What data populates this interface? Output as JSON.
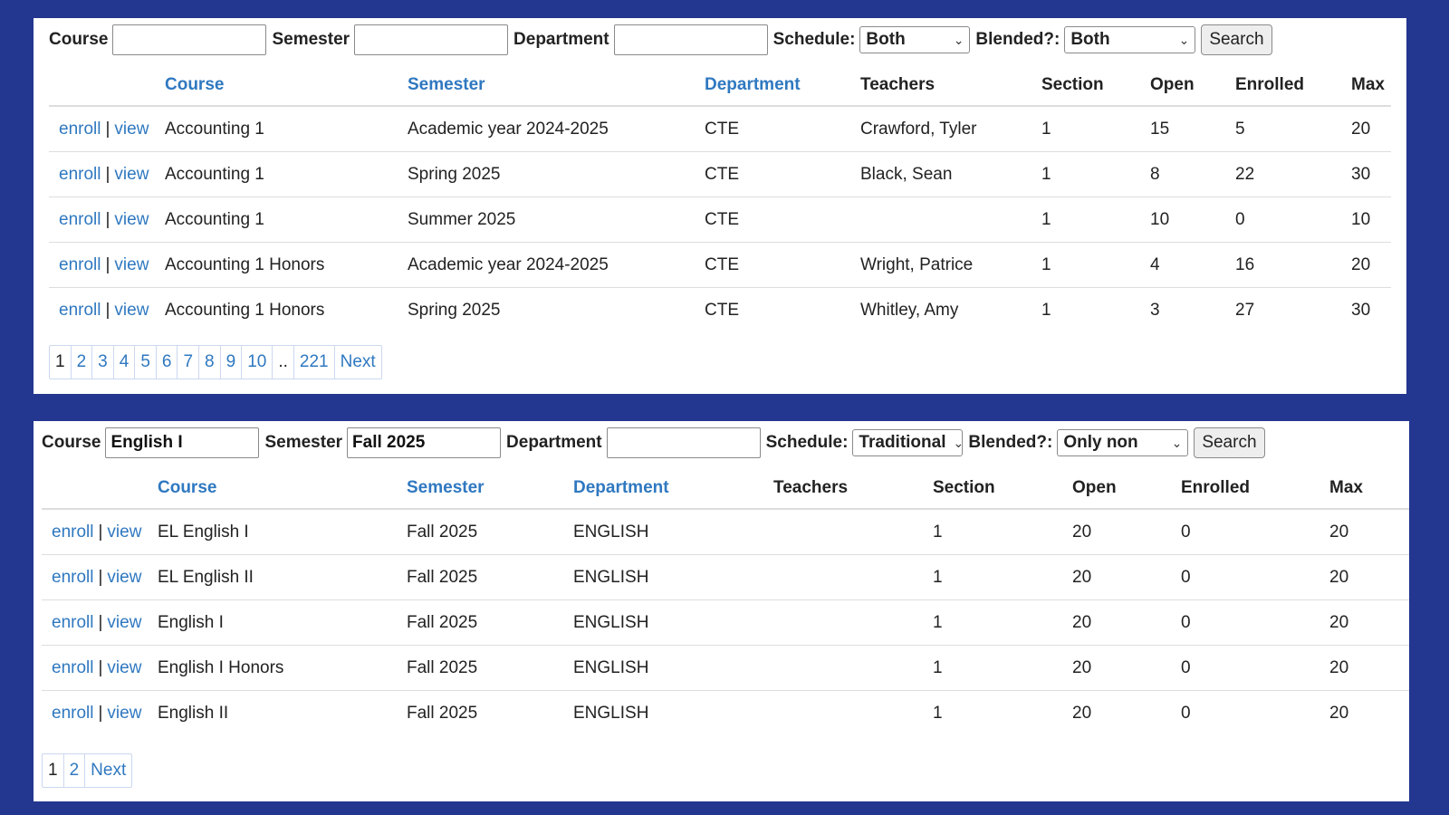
{
  "panel1": {
    "search": {
      "course_label": "Course",
      "course_value": "",
      "semester_label": "Semester",
      "semester_value": "",
      "department_label": "Department",
      "department_value": "",
      "schedule_label": "Schedule:",
      "schedule_value": "Both",
      "blended_label": "Blended?:",
      "blended_value": "Both",
      "search_label": "Search"
    },
    "headers": [
      "",
      "Course",
      "Semester",
      "Department",
      "Teachers",
      "Section",
      "Open",
      "Enrolled",
      "Max"
    ],
    "rows": [
      {
        "enroll": "enroll",
        "sep": "|",
        "view": "view",
        "course": "Accounting 1",
        "semester": "Academic year 2024-2025",
        "department": "CTE",
        "teachers": "Crawford, Tyler",
        "section": "1",
        "open": "15",
        "enrolled": "5",
        "max": "20"
      },
      {
        "enroll": "enroll",
        "sep": "|",
        "view": "view",
        "course": "Accounting 1",
        "semester": "Spring 2025",
        "department": "CTE",
        "teachers": "Black, Sean",
        "section": "1",
        "open": "8",
        "enrolled": "22",
        "max": "30"
      },
      {
        "enroll": "enroll",
        "sep": "|",
        "view": "view",
        "course": "Accounting 1",
        "semester": "Summer 2025",
        "department": "CTE",
        "teachers": "",
        "section": "1",
        "open": "10",
        "enrolled": "0",
        "max": "10"
      },
      {
        "enroll": "enroll",
        "sep": "|",
        "view": "view",
        "course": "Accounting 1 Honors",
        "semester": "Academic year 2024-2025",
        "department": "CTE",
        "teachers": "Wright, Patrice",
        "section": "1",
        "open": "4",
        "enrolled": "16",
        "max": "20"
      },
      {
        "enroll": "enroll",
        "sep": "|",
        "view": "view",
        "course": "Accounting 1 Honors",
        "semester": "Spring 2025",
        "department": "CTE",
        "teachers": "Whitley, Amy",
        "section": "1",
        "open": "3",
        "enrolled": "27",
        "max": "30"
      }
    ],
    "pagination": [
      "1",
      "2",
      "3",
      "4",
      "5",
      "6",
      "7",
      "8",
      "9",
      "10",
      "..",
      "221",
      "Next"
    ]
  },
  "panel2": {
    "search": {
      "course_label": "Course",
      "course_value": "English I",
      "semester_label": "Semester",
      "semester_value": "Fall 2025",
      "department_label": "Department",
      "department_value": "",
      "schedule_label": "Schedule:",
      "schedule_value": "Traditional",
      "blended_label": "Blended?:",
      "blended_value": "Only non",
      "search_label": "Search"
    },
    "headers": [
      "",
      "Course",
      "Semester",
      "Department",
      "Teachers",
      "Section",
      "Open",
      "Enrolled",
      "Max"
    ],
    "rows": [
      {
        "enroll": "enroll",
        "sep": "|",
        "view": "view",
        "course": "EL English I",
        "semester": "Fall 2025",
        "department": "ENGLISH",
        "teachers": "",
        "section": "1",
        "open": "20",
        "enrolled": "0",
        "max": "20"
      },
      {
        "enroll": "enroll",
        "sep": "|",
        "view": "view",
        "course": "EL English II",
        "semester": "Fall 2025",
        "department": "ENGLISH",
        "teachers": "",
        "section": "1",
        "open": "20",
        "enrolled": "0",
        "max": "20"
      },
      {
        "enroll": "enroll",
        "sep": "|",
        "view": "view",
        "course": "English I",
        "semester": "Fall 2025",
        "department": "ENGLISH",
        "teachers": "",
        "section": "1",
        "open": "20",
        "enrolled": "0",
        "max": "20"
      },
      {
        "enroll": "enroll",
        "sep": "|",
        "view": "view",
        "course": "English I Honors",
        "semester": "Fall 2025",
        "department": "ENGLISH",
        "teachers": "",
        "section": "1",
        "open": "20",
        "enrolled": "0",
        "max": "20"
      },
      {
        "enroll": "enroll",
        "sep": "|",
        "view": "view",
        "course": "English II",
        "semester": "Fall 2025",
        "department": "ENGLISH",
        "teachers": "",
        "section": "1",
        "open": "20",
        "enrolled": "0",
        "max": "20"
      }
    ],
    "pagination": [
      "1",
      "2",
      "Next"
    ]
  },
  "colors": {
    "background": "#233690",
    "link": "#2f78c0",
    "panel": "#ffffff"
  },
  "icons": {
    "select_arrow": "chevron-down-icon"
  }
}
